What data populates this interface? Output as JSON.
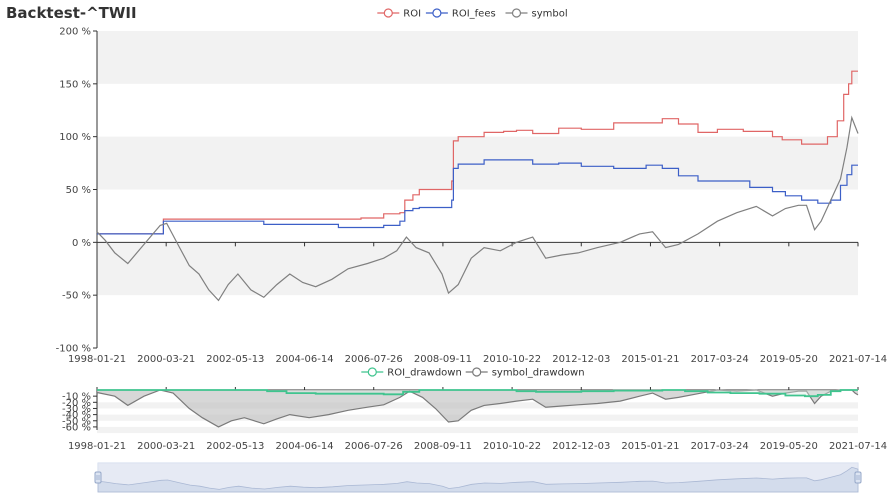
{
  "title": "Backtest-^TWII",
  "colors": {
    "roi": "#e06666",
    "roi_fees": "#3c5fc7",
    "symbol": "#808080",
    "roi_drawdown": "#3fc48e",
    "symbol_drawdown": "#7a7a7a",
    "band": "#f2f2f2",
    "zoom_fill": "#dfe6f2"
  },
  "legend_top": [
    "ROI",
    "ROI_fees",
    "symbol"
  ],
  "legend_bottom": [
    "ROI_drawdown",
    "symbol_drawdown"
  ],
  "chart_data": [
    {
      "type": "line",
      "x_ticks": [
        "1998-01-21",
        "2000-03-21",
        "2002-05-13",
        "2004-06-14",
        "2006-07-26",
        "2008-09-11",
        "2010-10-22",
        "2012-12-03",
        "2015-01-21",
        "2017-03-24",
        "2019-05-20",
        "2021-07-14"
      ],
      "y_ticks": [
        "200 %",
        "150 %",
        "100 %",
        "50 %",
        "0 %",
        "-50 %",
        "-100 %"
      ],
      "ylim": [
        -100,
        200
      ],
      "xlim": [
        1998.05,
        2021.54
      ],
      "grid": "alternating horizontal bands",
      "legend_position": "top-center",
      "series": [
        {
          "name": "ROI",
          "points": [
            [
              1998.05,
              8
            ],
            [
              2000.1,
              8
            ],
            [
              2000.1,
              22
            ],
            [
              2001.8,
              22
            ],
            [
              2002.8,
              22
            ],
            [
              2003.2,
              22
            ],
            [
              2005.5,
              22
            ],
            [
              2006.2,
              23
            ],
            [
              2006.9,
              27
            ],
            [
              2007.4,
              28
            ],
            [
              2007.55,
              40
            ],
            [
              2007.8,
              45
            ],
            [
              2008.0,
              50
            ],
            [
              2008.9,
              50
            ],
            [
              2009.0,
              58
            ],
            [
              2009.05,
              96
            ],
            [
              2009.2,
              100
            ],
            [
              2010.0,
              104
            ],
            [
              2010.6,
              105
            ],
            [
              2011.0,
              106
            ],
            [
              2011.5,
              103
            ],
            [
              2012.3,
              108
            ],
            [
              2013.0,
              107
            ],
            [
              2014.0,
              113
            ],
            [
              2015.5,
              117
            ],
            [
              2016.0,
              112
            ],
            [
              2016.6,
              104
            ],
            [
              2017.2,
              107
            ],
            [
              2018.0,
              105
            ],
            [
              2018.9,
              100
            ],
            [
              2019.2,
              97
            ],
            [
              2019.8,
              93
            ],
            [
              2020.3,
              93
            ],
            [
              2020.6,
              100
            ],
            [
              2020.9,
              115
            ],
            [
              2021.1,
              140
            ],
            [
              2021.25,
              150
            ],
            [
              2021.35,
              162
            ],
            [
              2021.54,
              162
            ]
          ]
        },
        {
          "name": "ROI_fees",
          "points": [
            [
              1998.05,
              8
            ],
            [
              2000.1,
              8
            ],
            [
              2000.1,
              20
            ],
            [
              2002.8,
              20
            ],
            [
              2003.2,
              17
            ],
            [
              2005.5,
              14
            ],
            [
              2006.2,
              14
            ],
            [
              2006.9,
              16
            ],
            [
              2007.4,
              20
            ],
            [
              2007.55,
              30
            ],
            [
              2007.8,
              32
            ],
            [
              2008.0,
              33
            ],
            [
              2008.9,
              33
            ],
            [
              2009.0,
              40
            ],
            [
              2009.05,
              70
            ],
            [
              2009.2,
              74
            ],
            [
              2010.0,
              78
            ],
            [
              2011.0,
              78
            ],
            [
              2011.5,
              74
            ],
            [
              2012.3,
              75
            ],
            [
              2013.0,
              72
            ],
            [
              2014.0,
              70
            ],
            [
              2015.0,
              73
            ],
            [
              2015.5,
              70
            ],
            [
              2016.0,
              63
            ],
            [
              2016.6,
              58
            ],
            [
              2017.3,
              58
            ],
            [
              2018.2,
              52
            ],
            [
              2018.9,
              48
            ],
            [
              2019.3,
              44
            ],
            [
              2019.8,
              40
            ],
            [
              2020.3,
              37
            ],
            [
              2020.7,
              40
            ],
            [
              2021.0,
              54
            ],
            [
              2021.2,
              64
            ],
            [
              2021.35,
              73
            ],
            [
              2021.54,
              73
            ]
          ]
        },
        {
          "name": "symbol",
          "points": [
            [
              1998.05,
              10
            ],
            [
              1998.3,
              2
            ],
            [
              1998.6,
              -10
            ],
            [
              1999.0,
              -20
            ],
            [
              1999.5,
              -2
            ],
            [
              2000.0,
              16
            ],
            [
              2000.2,
              18
            ],
            [
              2000.6,
              -5
            ],
            [
              2000.9,
              -22
            ],
            [
              2001.2,
              -30
            ],
            [
              2001.5,
              -45
            ],
            [
              2001.8,
              -55
            ],
            [
              2002.1,
              -40
            ],
            [
              2002.4,
              -30
            ],
            [
              2002.8,
              -45
            ],
            [
              2003.2,
              -52
            ],
            [
              2003.6,
              -40
            ],
            [
              2004.0,
              -30
            ],
            [
              2004.4,
              -38
            ],
            [
              2004.8,
              -42
            ],
            [
              2005.3,
              -35
            ],
            [
              2005.8,
              -25
            ],
            [
              2006.4,
              -20
            ],
            [
              2006.9,
              -15
            ],
            [
              2007.3,
              -8
            ],
            [
              2007.6,
              5
            ],
            [
              2007.9,
              -5
            ],
            [
              2008.3,
              -10
            ],
            [
              2008.7,
              -30
            ],
            [
              2008.9,
              -48
            ],
            [
              2009.2,
              -40
            ],
            [
              2009.6,
              -15
            ],
            [
              2010.0,
              -5
            ],
            [
              2010.5,
              -8
            ],
            [
              2011.0,
              0
            ],
            [
              2011.5,
              5
            ],
            [
              2011.9,
              -15
            ],
            [
              2012.4,
              -12
            ],
            [
              2012.9,
              -10
            ],
            [
              2013.5,
              -5
            ],
            [
              2014.2,
              0
            ],
            [
              2014.8,
              8
            ],
            [
              2015.2,
              10
            ],
            [
              2015.6,
              -5
            ],
            [
              2016.0,
              -2
            ],
            [
              2016.6,
              8
            ],
            [
              2017.2,
              20
            ],
            [
              2017.8,
              28
            ],
            [
              2018.4,
              34
            ],
            [
              2018.9,
              25
            ],
            [
              2019.3,
              32
            ],
            [
              2019.7,
              35
            ],
            [
              2019.95,
              35
            ],
            [
              2020.2,
              12
            ],
            [
              2020.4,
              20
            ],
            [
              2020.7,
              40
            ],
            [
              2021.0,
              60
            ],
            [
              2021.2,
              90
            ],
            [
              2021.35,
              118
            ],
            [
              2021.45,
              110
            ],
            [
              2021.54,
              103
            ]
          ]
        }
      ]
    },
    {
      "type": "area",
      "x_ticks": [
        "1998-01-21",
        "2000-03-21",
        "2002-05-13",
        "2004-06-14",
        "2006-07-26",
        "2008-09-11",
        "2010-10-22",
        "2012-12-03",
        "2015-01-21",
        "2017-03-24",
        "2019-05-20",
        "2021-07-14"
      ],
      "y_ticks": [
        "-10 %",
        "-20 %",
        "-30 %",
        "-40 %",
        "-50 %",
        "-60 %"
      ],
      "ylim": [
        -65,
        0
      ],
      "xlim": [
        1998.05,
        2021.54
      ],
      "legend_position": "top-center",
      "series": [
        {
          "name": "ROI_drawdown",
          "points": [
            [
              1998.05,
              0
            ],
            [
              2000.1,
              0
            ],
            [
              2002.8,
              0
            ],
            [
              2003.3,
              -2
            ],
            [
              2003.9,
              -5
            ],
            [
              2004.8,
              -6
            ],
            [
              2006.0,
              -6
            ],
            [
              2006.9,
              -7
            ],
            [
              2007.5,
              -3
            ],
            [
              2008.0,
              0
            ],
            [
              2009.0,
              0
            ],
            [
              2010.0,
              0
            ],
            [
              2011.0,
              -2
            ],
            [
              2011.6,
              -3
            ],
            [
              2012.4,
              -3
            ],
            [
              2013.0,
              -2
            ],
            [
              2014.0,
              -1
            ],
            [
              2015.5,
              0
            ],
            [
              2016.2,
              -2
            ],
            [
              2016.9,
              -4
            ],
            [
              2017.6,
              -5
            ],
            [
              2018.5,
              -6
            ],
            [
              2019.3,
              -9
            ],
            [
              2019.9,
              -10
            ],
            [
              2020.3,
              -8
            ],
            [
              2020.7,
              -2
            ],
            [
              2021.0,
              0
            ],
            [
              2021.54,
              0
            ]
          ]
        },
        {
          "name": "symbol_drawdown",
          "points": [
            [
              1998.05,
              -4
            ],
            [
              1998.6,
              -10
            ],
            [
              1999.0,
              -25
            ],
            [
              1999.5,
              -10
            ],
            [
              2000.0,
              0
            ],
            [
              2000.4,
              -5
            ],
            [
              2000.9,
              -30
            ],
            [
              2001.3,
              -45
            ],
            [
              2001.8,
              -60
            ],
            [
              2002.2,
              -50
            ],
            [
              2002.6,
              -45
            ],
            [
              2003.2,
              -55
            ],
            [
              2003.6,
              -47
            ],
            [
              2004.0,
              -40
            ],
            [
              2004.6,
              -45
            ],
            [
              2005.2,
              -40
            ],
            [
              2005.8,
              -33
            ],
            [
              2006.4,
              -28
            ],
            [
              2006.9,
              -24
            ],
            [
              2007.4,
              -12
            ],
            [
              2007.7,
              -2
            ],
            [
              2008.1,
              -12
            ],
            [
              2008.5,
              -30
            ],
            [
              2008.9,
              -52
            ],
            [
              2009.2,
              -50
            ],
            [
              2009.6,
              -33
            ],
            [
              2010.0,
              -25
            ],
            [
              2010.5,
              -22
            ],
            [
              2011.0,
              -18
            ],
            [
              2011.5,
              -15
            ],
            [
              2011.9,
              -28
            ],
            [
              2012.4,
              -26
            ],
            [
              2012.9,
              -24
            ],
            [
              2013.5,
              -22
            ],
            [
              2014.2,
              -18
            ],
            [
              2014.8,
              -10
            ],
            [
              2015.2,
              -5
            ],
            [
              2015.6,
              -15
            ],
            [
              2016.0,
              -12
            ],
            [
              2016.6,
              -6
            ],
            [
              2017.2,
              0
            ],
            [
              2017.8,
              -2
            ],
            [
              2018.4,
              0
            ],
            [
              2018.9,
              -10
            ],
            [
              2019.3,
              -5
            ],
            [
              2019.7,
              -2
            ],
            [
              2019.95,
              -2
            ],
            [
              2020.2,
              -22
            ],
            [
              2020.4,
              -10
            ],
            [
              2020.7,
              -2
            ],
            [
              2021.0,
              0
            ],
            [
              2021.35,
              0
            ],
            [
              2021.45,
              -5
            ],
            [
              2021.54,
              -8
            ]
          ]
        }
      ]
    }
  ]
}
